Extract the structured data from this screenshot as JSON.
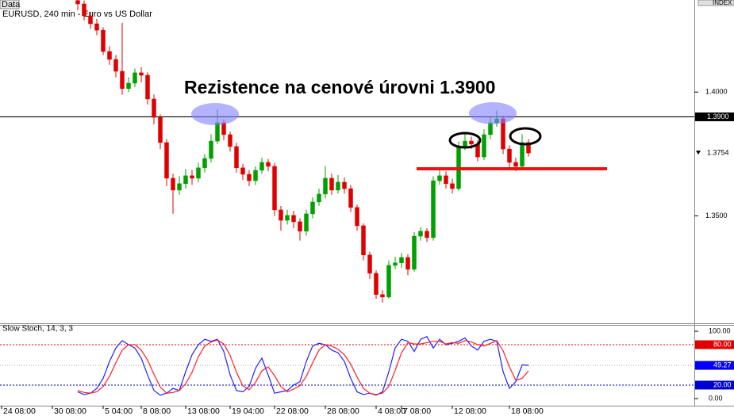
{
  "header": {
    "data_tab": "Data",
    "symbol": "EURUSD, 240 min - Euro vs US Dollar",
    "index": "INDEX"
  },
  "chart_data": [
    {
      "type": "candlestick",
      "annotation": "Rezistence na cenové úrovni 1.3900",
      "open": [
        1.437,
        1.4356,
        1.4308,
        1.4276,
        1.425,
        1.4164,
        1.4132,
        1.4084,
        1.4014,
        1.4036,
        1.4078,
        1.4068,
        1.3972,
        1.3898,
        1.3796,
        1.3652,
        1.3604,
        1.363,
        1.3662,
        1.3652,
        1.3694,
        1.3732,
        1.3802,
        1.3876,
        1.3828,
        1.378,
        1.3694,
        1.3668,
        1.3642,
        1.3684,
        1.3716,
        1.37,
        1.3524,
        1.3482,
        1.3502,
        1.3476,
        1.3438,
        1.3508,
        1.3556,
        1.3588,
        1.3652,
        1.3604,
        1.3636,
        1.361,
        1.3534,
        1.346,
        1.3342,
        1.3268,
        1.3182,
        1.3172,
        1.33,
        1.331,
        1.3332,
        1.3284,
        1.3418,
        1.3438,
        1.3412,
        1.3642,
        1.3662,
        1.363,
        1.361,
        1.378,
        1.3802,
        1.379,
        1.3738,
        1.3828,
        1.3876,
        1.3892,
        1.377,
        1.3716,
        1.37,
        1.3796
      ],
      "high": [
        1.4385,
        1.437,
        1.4325,
        1.4295,
        1.4262,
        1.4185,
        1.415,
        1.428,
        1.406,
        1.4095,
        1.41,
        1.408,
        1.399,
        1.391,
        1.381,
        1.367,
        1.366,
        1.369,
        1.3685,
        1.3715,
        1.375,
        1.383,
        1.393,
        1.389,
        1.384,
        1.3795,
        1.371,
        1.3685,
        1.37,
        1.3735,
        1.373,
        1.3715,
        1.354,
        1.3525,
        1.352,
        1.349,
        1.3525,
        1.3575,
        1.361,
        1.37,
        1.367,
        1.3665,
        1.3655,
        1.3625,
        1.3545,
        1.347,
        1.3355,
        1.328,
        1.32,
        1.332,
        1.3335,
        1.335,
        1.3345,
        1.3435,
        1.3455,
        1.345,
        1.366,
        1.369,
        1.368,
        1.365,
        1.38,
        1.383,
        1.382,
        1.3805,
        1.385,
        1.39,
        1.3925,
        1.3905,
        1.3785,
        1.3735,
        1.383,
        1.381
      ],
      "low": [
        1.433,
        1.429,
        1.4255,
        1.423,
        1.415,
        1.411,
        1.406,
        1.399,
        1.4,
        1.402,
        1.404,
        1.395,
        1.387,
        1.377,
        1.362,
        1.3508,
        1.3585,
        1.361,
        1.3625,
        1.3635,
        1.3675,
        1.3715,
        1.379,
        1.3805,
        1.376,
        1.3675,
        1.3645,
        1.362,
        1.3625,
        1.367,
        1.368,
        1.35,
        1.344,
        1.3465,
        1.345,
        1.34,
        1.342,
        1.349,
        1.354,
        1.357,
        1.3585,
        1.359,
        1.359,
        1.3515,
        1.344,
        1.332,
        1.3245,
        1.3165,
        1.315,
        1.3165,
        1.3285,
        1.329,
        1.326,
        1.3275,
        1.34,
        1.3395,
        1.34,
        1.3625,
        1.361,
        1.359,
        1.36,
        1.3765,
        1.377,
        1.372,
        1.3725,
        1.381,
        1.386,
        1.375,
        1.3695,
        1.368,
        1.369,
        1.374
      ],
      "close": [
        1.4356,
        1.4308,
        1.4276,
        1.425,
        1.4164,
        1.4132,
        1.4084,
        1.4014,
        1.4036,
        1.4078,
        1.4068,
        1.3972,
        1.3898,
        1.3796,
        1.3652,
        1.3604,
        1.363,
        1.3662,
        1.3652,
        1.3694,
        1.3732,
        1.3802,
        1.3876,
        1.3828,
        1.378,
        1.3694,
        1.3668,
        1.3642,
        1.3684,
        1.3716,
        1.37,
        1.3524,
        1.3482,
        1.3502,
        1.3476,
        1.3438,
        1.3508,
        1.3556,
        1.3588,
        1.3652,
        1.3604,
        1.3636,
        1.361,
        1.3534,
        1.346,
        1.3342,
        1.3268,
        1.3182,
        1.3172,
        1.33,
        1.331,
        1.3332,
        1.3284,
        1.3418,
        1.3438,
        1.3412,
        1.3642,
        1.3662,
        1.363,
        1.361,
        1.378,
        1.3802,
        1.379,
        1.3738,
        1.3828,
        1.3876,
        1.3892,
        1.377,
        1.3716,
        1.37,
        1.3796,
        1.3754
      ],
      "up_color": "#00a000",
      "down_color": "#e00000",
      "xlim": [
        -12.25,
        97.125
      ],
      "xticks": [
        {
          "value": -12,
          "label": "24 08:00"
        },
        {
          "value": -4,
          "label": "30 08:00"
        },
        {
          "value": 4,
          "label": "5 04:00"
        },
        {
          "value": 10,
          "label": "8 08:00"
        },
        {
          "value": 17,
          "label": "13 08:00"
        },
        {
          "value": 24,
          "label": "19 04:00"
        },
        {
          "value": 31,
          "label": "22 08:00"
        },
        {
          "value": 39,
          "label": "28 08:00"
        },
        {
          "value": 47,
          "label": "4 08:00"
        },
        {
          "value": 51,
          "label": "7 08:00"
        },
        {
          "value": 59,
          "label": "12 08:00"
        },
        {
          "value": 68,
          "label": "18 08:00"
        }
      ],
      "ylim": [
        1.3066,
        1.4372
      ],
      "yticks": [
        {
          "value": 1.4,
          "label": "1.4000"
        },
        {
          "value": 1.35,
          "label": "1.3500"
        }
      ],
      "resistance": {
        "value": 1.39,
        "label": "1.3900",
        "color": "#000000"
      },
      "current": {
        "value": 1.3754,
        "label": "1.3754"
      },
      "support": {
        "value": 1.369,
        "color": "#ee1111"
      }
    },
    {
      "type": "line",
      "title": "Slow Stoch, 14, 3, 3",
      "ylim": [
        -10.6,
        109.4
      ],
      "yticks": [
        {
          "value": 100,
          "label": "100.00"
        },
        {
          "value": 0,
          "label": "0.00"
        }
      ],
      "levels": [
        {
          "value": 80,
          "label": "80.00",
          "color": "#e00000"
        },
        {
          "value": 20,
          "label": "20.00",
          "color": "#0000d0"
        }
      ],
      "current": {
        "value": 49.27,
        "label": "49.27",
        "color": "#0000ff"
      },
      "series": [
        {
          "color": "#2020ff",
          "values": [
            10,
            6,
            8,
            15,
            30,
            55,
            75,
            86,
            80,
            75,
            60,
            35,
            12,
            5,
            8,
            15,
            12,
            40,
            65,
            80,
            88,
            85,
            88,
            70,
            35,
            12,
            10,
            18,
            45,
            60,
            35,
            8,
            10,
            12,
            20,
            25,
            55,
            78,
            82,
            80,
            72,
            68,
            55,
            30,
            10,
            6,
            8,
            5,
            10,
            40,
            75,
            88,
            85,
            70,
            88,
            92,
            75,
            88,
            80,
            82,
            85,
            90,
            78,
            72,
            85,
            88,
            85,
            40,
            15,
            25,
            50,
            49.27
          ]
        },
        {
          "color": "#ff2020",
          "values": [
            12,
            9,
            8,
            10,
            18,
            33,
            53,
            72,
            80,
            80,
            72,
            57,
            36,
            17,
            8,
            9,
            12,
            22,
            39,
            62,
            78,
            84,
            87,
            81,
            64,
            39,
            19,
            13,
            24,
            41,
            47,
            34,
            18,
            10,
            14,
            19,
            33,
            53,
            72,
            80,
            78,
            73,
            65,
            51,
            32,
            15,
            8,
            6,
            8,
            18,
            42,
            68,
            83,
            81,
            81,
            83,
            85,
            85,
            81,
            83,
            82,
            86,
            84,
            80,
            78,
            82,
            86,
            71,
            47,
            27,
            30,
            41
          ]
        }
      ]
    }
  ]
}
